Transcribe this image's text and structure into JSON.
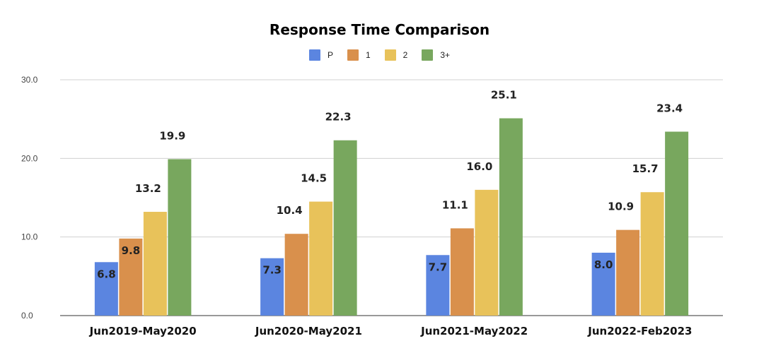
{
  "chart_data": {
    "type": "bar",
    "title": "Response Time Comparison",
    "categories": [
      "Jun2019-May2020",
      "Jun2020-May2021",
      "Jun2021-May2022",
      "Jun2022-Feb2023"
    ],
    "series": [
      {
        "name": "P",
        "color": "#5b85e0",
        "values": [
          6.8,
          7.3,
          7.7,
          8.0
        ],
        "labels": [
          "6.8",
          "7.3",
          "7.7",
          "8.0"
        ]
      },
      {
        "name": "1",
        "color": "#d9904c",
        "values": [
          9.8,
          10.4,
          11.1,
          10.9
        ],
        "labels": [
          "9.8",
          "10.4",
          "11.1",
          "10.9"
        ]
      },
      {
        "name": "2",
        "color": "#e8c25a",
        "values": [
          13.2,
          14.5,
          16.0,
          15.7
        ],
        "labels": [
          "13.2",
          "14.5",
          "16.0",
          "15.7"
        ]
      },
      {
        "name": "3+",
        "color": "#78a75e",
        "values": [
          19.9,
          22.3,
          25.1,
          23.4
        ],
        "labels": [
          "19.9",
          "22.3",
          "25.1",
          "23.4"
        ]
      }
    ],
    "yticks": [
      "0.0",
      "10.0",
      "20.0",
      "30.0"
    ],
    "ylim": [
      0,
      30
    ],
    "grid": true,
    "legend_position": "top-center"
  }
}
